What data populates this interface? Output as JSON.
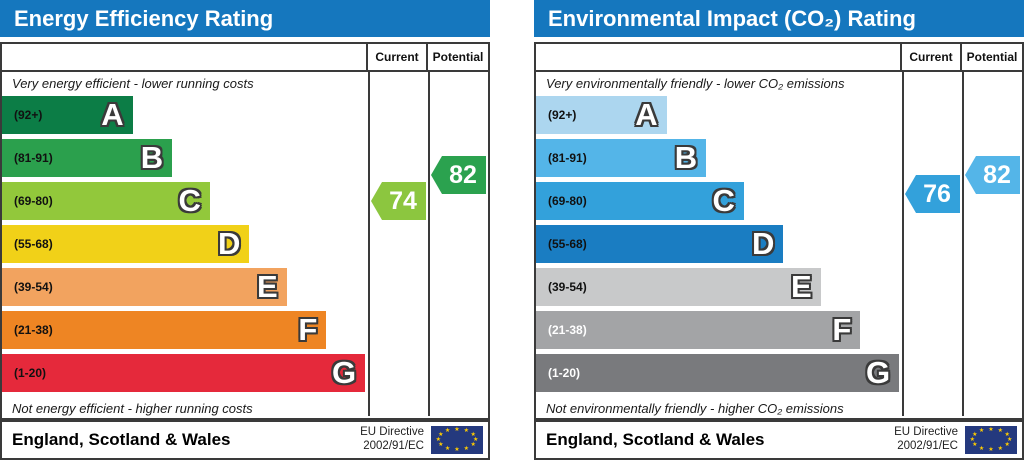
{
  "colors": {
    "header_bg": "#1577BE",
    "header_text": "#FFFFFF",
    "border": "#3A3A3A",
    "eu_flag_bg": "#24397E",
    "eu_star": "#FFCC00"
  },
  "chart_data": [
    {
      "type": "bar",
      "title": "Energy Efficiency Rating",
      "categories": [
        "A (92+)",
        "B (81-91)",
        "C (69-80)",
        "D (55-68)",
        "E (39-54)",
        "F (21-38)",
        "G (1-20)"
      ],
      "values": [
        35.7,
        46.5,
        56.8,
        67.6,
        77.8,
        88.6,
        99.2
      ],
      "current": 74,
      "current_band": "C",
      "potential": 82,
      "potential_band": "B"
    },
    {
      "type": "bar",
      "title": "Environmental Impact (CO₂) Rating",
      "categories": [
        "A (92+)",
        "B (81-91)",
        "C (69-80)",
        "D (55-68)",
        "E (39-54)",
        "F (21-38)",
        "G (1-20)"
      ],
      "values": [
        35.7,
        46.5,
        56.8,
        67.6,
        77.8,
        88.6,
        99.2
      ],
      "current": 76,
      "current_band": "C",
      "potential": 82,
      "potential_band": "B"
    }
  ],
  "panels": [
    {
      "title": "Energy Efficiency Rating",
      "columns": {
        "current": "Current",
        "potential": "Potential"
      },
      "top_caption": "Very energy efficient - lower running costs",
      "bottom_caption": "Not energy efficient - higher running costs",
      "bands": [
        {
          "range": "(92+)",
          "letter": "A",
          "color": "#0C7D46",
          "width": "35.7%",
          "label_color": "#111111"
        },
        {
          "range": "(81-91)",
          "letter": "B",
          "color": "#2BA04D",
          "width": "46.5%",
          "label_color": "#111111"
        },
        {
          "range": "(69-80)",
          "letter": "C",
          "color": "#92C83B",
          "width": "56.8%",
          "label_color": "#111111"
        },
        {
          "range": "(55-68)",
          "letter": "D",
          "color": "#F1D118",
          "width": "67.6%",
          "label_color": "#111111"
        },
        {
          "range": "(39-54)",
          "letter": "E",
          "color": "#F2A35F",
          "width": "77.8%",
          "label_color": "#111111"
        },
        {
          "range": "(21-38)",
          "letter": "F",
          "color": "#EE8523",
          "width": "88.6%",
          "label_color": "#111111"
        },
        {
          "range": "(1-20)",
          "letter": "G",
          "color": "#E5293B",
          "width": "99.2%",
          "label_color": "#111111"
        }
      ],
      "current": {
        "value": "74",
        "color": "#8CC63F"
      },
      "potential": {
        "value": "82",
        "color": "#2BA24F"
      },
      "footer": {
        "region": "England, Scotland & Wales",
        "directive_line1": "EU Directive",
        "directive_line2": "2002/91/EC"
      }
    },
    {
      "title": "Environmental Impact (CO₂) Rating",
      "columns": {
        "current": "Current",
        "potential": "Potential"
      },
      "top_caption": "Very environmentally friendly - lower CO₂ emissions",
      "bottom_caption": "Not environmentally friendly - higher CO₂ emissions",
      "bands": [
        {
          "range": "(92+)",
          "letter": "A",
          "color": "#ACD6EF",
          "width": "35.7%",
          "label_color": "#111111"
        },
        {
          "range": "(81-91)",
          "letter": "B",
          "color": "#54B5E8",
          "width": "46.5%",
          "label_color": "#111111"
        },
        {
          "range": "(69-80)",
          "letter": "C",
          "color": "#33A1DB",
          "width": "56.8%",
          "label_color": "#111111"
        },
        {
          "range": "(55-68)",
          "letter": "D",
          "color": "#1A7DC2",
          "width": "67.6%",
          "label_color": "#111111"
        },
        {
          "range": "(39-54)",
          "letter": "E",
          "color": "#C8C9CA",
          "width": "77.8%",
          "label_color": "#111111"
        },
        {
          "range": "(21-38)",
          "letter": "F",
          "color": "#A3A4A6",
          "width": "88.6%",
          "label_color": "#FFFFFF"
        },
        {
          "range": "(1-20)",
          "letter": "G",
          "color": "#797A7D",
          "width": "99.2%",
          "label_color": "#FFFFFF"
        }
      ],
      "current": {
        "value": "76",
        "color": "#33A1DB"
      },
      "potential": {
        "value": "82",
        "color": "#54B5E8"
      },
      "footer": {
        "region": "England, Scotland & Wales",
        "directive_line1": "EU Directive",
        "directive_line2": "2002/91/EC"
      }
    }
  ]
}
